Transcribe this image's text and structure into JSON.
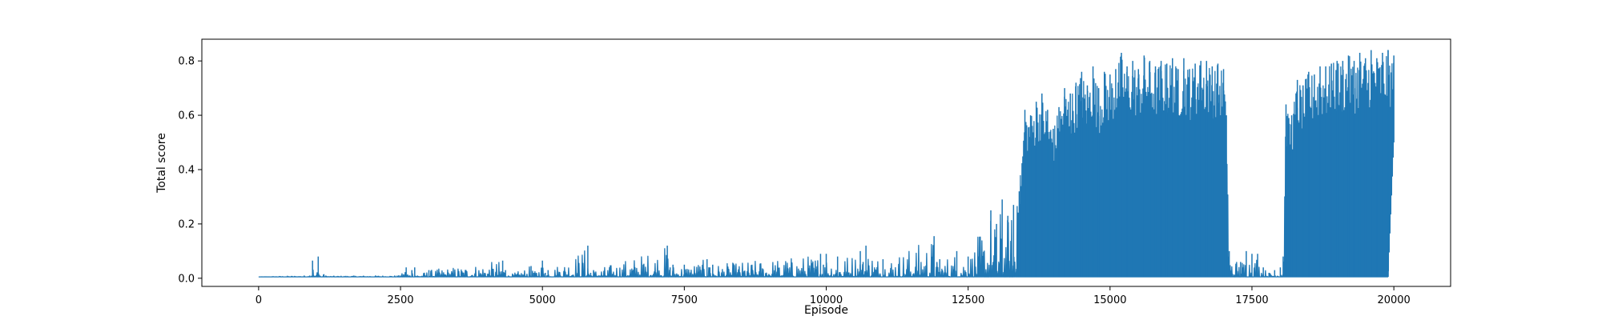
{
  "chart_data": {
    "type": "line",
    "title": "",
    "xlabel": "Episode",
    "ylabel": "Total score",
    "xlim": [
      -1000,
      21000
    ],
    "ylim": [
      -0.03,
      0.88
    ],
    "xticks": [
      0,
      2500,
      5000,
      7500,
      10000,
      12500,
      15000,
      17500,
      20000
    ],
    "yticks": [
      0.0,
      0.2,
      0.4,
      0.6,
      0.8
    ],
    "xtick_labels": [
      "0",
      "2500",
      "5000",
      "7500",
      "10000",
      "12500",
      "15000",
      "17500",
      "20000"
    ],
    "ytick_labels": [
      "0.0",
      "0.2",
      "0.4",
      "0.6",
      "0.8"
    ],
    "grid": false,
    "legend": "none",
    "color": "#1f77b4",
    "series": [
      {
        "x": [
          0,
          900,
          950,
          1000,
          1050,
          1100,
          1150,
          1200,
          2500,
          2600,
          2650,
          2700,
          2750,
          2800,
          3000,
          4300,
          4350,
          4400,
          4800,
          4850,
          5000,
          5050,
          5100,
          5800,
          5850,
          5900,
          7200,
          7250,
          7300,
          7500,
          7900,
          7950,
          8000,
          9900,
          9950,
          10000,
          10200,
          10600,
          10650,
          10700,
          11000,
          11900,
          11950,
          12000,
          12300,
          12500,
          12900,
          13000,
          13100,
          13200,
          13300,
          13400,
          13500,
          13600,
          13700,
          13800,
          13900,
          14000,
          14100,
          14200,
          14300,
          14400,
          14500,
          14600,
          14700,
          14800,
          14900,
          15000,
          15100,
          15200,
          15300,
          15400,
          15500,
          15600,
          15700,
          15800,
          15900,
          16000,
          16100,
          16200,
          16300,
          16400,
          16500,
          16600,
          16700,
          16800,
          16900,
          17000,
          17050,
          17100,
          17300,
          17400,
          17500,
          17600,
          17700,
          17800,
          17900,
          18000,
          18050,
          18100,
          18150,
          18200,
          18300,
          18400,
          18500,
          18600,
          18700,
          18800,
          18900,
          19000,
          19100,
          19200,
          19300,
          19400,
          19500,
          19600,
          19700,
          19800,
          19900,
          20000
        ],
        "y_high": [
          0.005,
          0.01,
          0.065,
          0.005,
          0.08,
          0.005,
          0.015,
          0.008,
          0.01,
          0.04,
          0.01,
          0.03,
          0.04,
          0.01,
          0.03,
          0.065,
          0.03,
          0.01,
          0.045,
          0.02,
          0.065,
          0.02,
          0.03,
          0.12,
          0.02,
          0.03,
          0.12,
          0.04,
          0.05,
          0.05,
          0.07,
          0.04,
          0.05,
          0.09,
          0.05,
          0.09,
          0.08,
          0.1,
          0.06,
          0.12,
          0.07,
          0.155,
          0.06,
          0.07,
          0.1,
          0.08,
          0.25,
          0.2,
          0.29,
          0.23,
          0.27,
          0.32,
          0.62,
          0.6,
          0.65,
          0.68,
          0.62,
          0.55,
          0.63,
          0.7,
          0.68,
          0.72,
          0.76,
          0.71,
          0.78,
          0.7,
          0.76,
          0.75,
          0.77,
          0.83,
          0.78,
          0.8,
          0.77,
          0.82,
          0.8,
          0.78,
          0.8,
          0.79,
          0.81,
          0.77,
          0.81,
          0.77,
          0.79,
          0.8,
          0.8,
          0.78,
          0.79,
          0.77,
          0.6,
          0.1,
          0.06,
          0.1,
          0.09,
          0.09,
          0.04,
          0.02,
          0.03,
          0.04,
          0.08,
          0.64,
          0.59,
          0.6,
          0.73,
          0.71,
          0.76,
          0.75,
          0.78,
          0.78,
          0.79,
          0.8,
          0.8,
          0.82,
          0.8,
          0.83,
          0.81,
          0.84,
          0.81,
          0.83,
          0.84,
          0.82
        ],
        "y_low": [
          0.005,
          0.005,
          0.005,
          0.005,
          0.005,
          0.005,
          0.005,
          0.005,
          0.005,
          0.005,
          0.005,
          0.005,
          0.005,
          0.005,
          0.005,
          0.005,
          0.005,
          0.005,
          0.005,
          0.005,
          0.005,
          0.005,
          0.005,
          0.005,
          0.005,
          0.005,
          0.005,
          0.005,
          0.005,
          0.005,
          0.005,
          0.005,
          0.005,
          0.005,
          0.005,
          0.005,
          0.005,
          0.005,
          0.005,
          0.005,
          0.005,
          0.005,
          0.005,
          0.005,
          0.005,
          0.005,
          0.005,
          0.005,
          0.005,
          0.005,
          0.005,
          0.005,
          0.005,
          0.005,
          0.005,
          0.005,
          0.005,
          0.005,
          0.005,
          0.005,
          0.005,
          0.005,
          0.005,
          0.005,
          0.005,
          0.005,
          0.005,
          0.005,
          0.005,
          0.005,
          0.005,
          0.005,
          0.005,
          0.005,
          0.005,
          0.005,
          0.005,
          0.005,
          0.005,
          0.005,
          0.005,
          0.005,
          0.005,
          0.005,
          0.005,
          0.005,
          0.005,
          0.005,
          0.005,
          0.005,
          0.005,
          0.005,
          0.005,
          0.005,
          0.005,
          0.005,
          0.005,
          0.005,
          0.005,
          0.005,
          0.005,
          0.005,
          0.005,
          0.005,
          0.005,
          0.005,
          0.005,
          0.005,
          0.005,
          0.005,
          0.005,
          0.005,
          0.005,
          0.005,
          0.005,
          0.005,
          0.005,
          0.005,
          0.005,
          0.5
        ]
      }
    ]
  }
}
